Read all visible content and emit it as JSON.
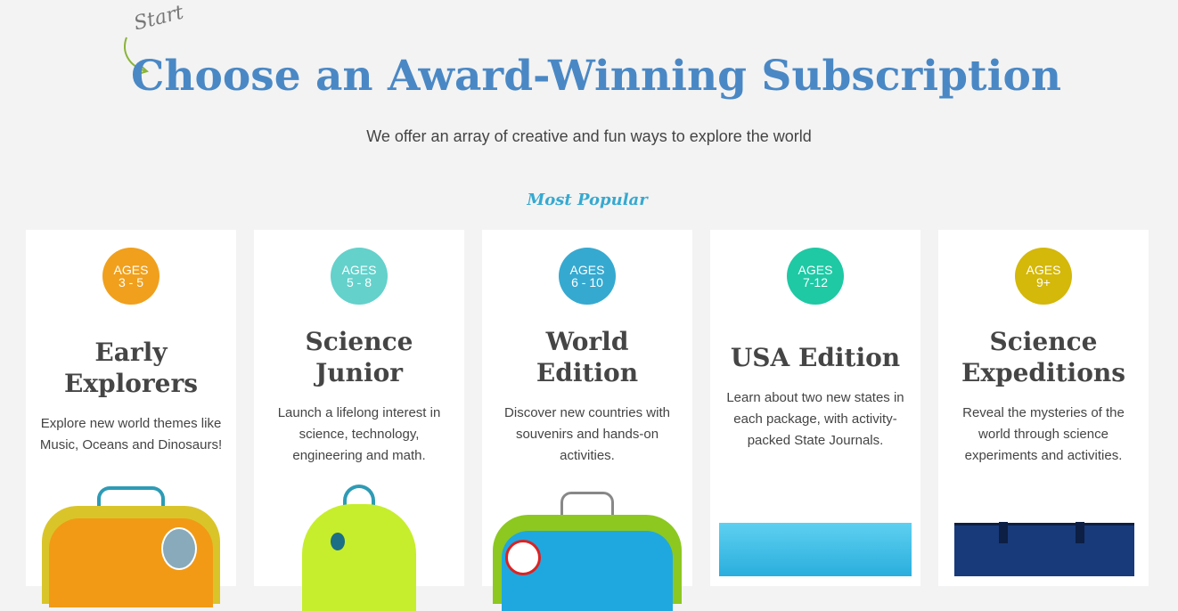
{
  "header": {
    "start_label": "Start",
    "title": "Choose an Award-Winning Subscription",
    "subtitle": "We offer an array of creative and fun ways to explore the world",
    "most_popular": "Most Popular"
  },
  "colors": {
    "title": "#4a88c5",
    "most_popular": "#36a9d0"
  },
  "cards": [
    {
      "ages_label": "AGES",
      "ages": "3 - 5",
      "color": "#f0a01d",
      "title": "Early Explorers",
      "desc": "Explore new world themes like Music, Oceans and Dinosaurs!",
      "image": "orange-suitcase"
    },
    {
      "ages_label": "AGES",
      "ages": "5 - 8",
      "color": "#64d1cb",
      "title": "Science Junior",
      "desc": "Launch a lifelong interest in science, technology, engineering and math.",
      "image": "green-backpack"
    },
    {
      "ages_label": "AGES",
      "ages": "6 - 10",
      "color": "#36a9d0",
      "title": "World Edition",
      "desc": "Discover new countries with souvenirs and hands-on activities.",
      "image": "blue-suitcase"
    },
    {
      "ages_label": "AGES",
      "ages": "7-12",
      "color": "#1ec9a4",
      "title": "USA Edition",
      "desc": "Learn about two new states in each package, with activity-packed State Journals.",
      "image": "state-journal"
    },
    {
      "ages_label": "AGES",
      "ages": "9+",
      "color": "#d4b80a",
      "title": "Science Expeditions",
      "desc": "Reveal the mysteries of the world through science experiments and activities.",
      "image": "navy-tote-bag"
    }
  ]
}
